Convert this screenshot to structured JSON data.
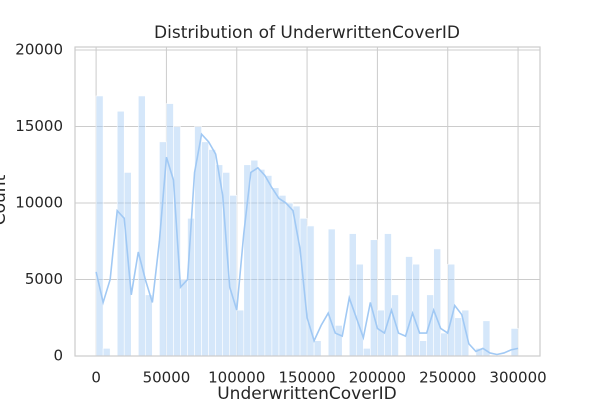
{
  "chart_data": {
    "type": "histogram",
    "title": "Distribution of UnderwrittenCoverID",
    "x_label": "UnderwrittenCoverID",
    "y_label": "Count",
    "bins": [
      0,
      5000,
      10000,
      15000,
      20000,
      25000,
      30000,
      35000,
      40000,
      45000,
      50000,
      55000,
      60000,
      65000,
      70000,
      75000,
      80000,
      85000,
      90000,
      95000,
      100000,
      105000,
      110000,
      115000,
      120000,
      125000,
      130000,
      135000,
      140000,
      145000,
      150000,
      155000,
      160000,
      165000,
      170000,
      175000,
      180000,
      185000,
      190000,
      195000,
      200000,
      205000,
      210000,
      215000,
      220000,
      225000,
      230000,
      235000,
      240000,
      245000,
      250000,
      255000,
      260000,
      265000,
      270000,
      275000,
      280000,
      285000,
      290000,
      295000,
      300000
    ],
    "values": [
      17000,
      500,
      0,
      16000,
      12000,
      0,
      17000,
      4000,
      0,
      14000,
      16500,
      15000,
      5000,
      9000,
      15000,
      14000,
      13500,
      12500,
      12000,
      10500,
      3000,
      12500,
      12800,
      12200,
      11800,
      11000,
      10500,
      10000,
      9800,
      9000,
      8500,
      1000,
      0,
      8300,
      2000,
      0,
      8000,
      6000,
      500,
      7600,
      3000,
      8000,
      4000,
      0,
      6500,
      6000,
      1000,
      4000,
      7000,
      1500,
      6000,
      2500,
      3000,
      0,
      500,
      2300,
      0,
      0,
      0,
      1800
    ],
    "color": "#a1c9f4",
    "kde": {
      "x": [
        0,
        5000,
        10000,
        15000,
        20000,
        25000,
        30000,
        35000,
        40000,
        45000,
        50000,
        55000,
        60000,
        65000,
        70000,
        75000,
        80000,
        85000,
        90000,
        95000,
        100000,
        105000,
        110000,
        115000,
        120000,
        125000,
        130000,
        135000,
        140000,
        145000,
        150000,
        155000,
        160000,
        165000,
        170000,
        175000,
        180000,
        185000,
        190000,
        195000,
        200000,
        205000,
        210000,
        215000,
        220000,
        225000,
        230000,
        235000,
        240000,
        245000,
        250000,
        255000,
        260000,
        265000,
        270000,
        275000,
        280000,
        285000,
        290000,
        295000,
        300000
      ],
      "values": [
        5500,
        3500,
        5000,
        9500,
        9000,
        4000,
        6800,
        5000,
        3500,
        7500,
        13000,
        11500,
        4500,
        5000,
        12000,
        14500,
        14000,
        13200,
        10500,
        4500,
        3000,
        8000,
        12000,
        12300,
        11800,
        11000,
        10300,
        10000,
        9500,
        7000,
        2500,
        1000,
        2000,
        2800,
        1500,
        1300,
        3800,
        2500,
        1200,
        3500,
        1800,
        1500,
        3000,
        1500,
        1300,
        2800,
        1500,
        1500,
        3000,
        1800,
        1500,
        3300,
        2700,
        800,
        300,
        500,
        200,
        100,
        200,
        400,
        500
      ]
    },
    "xlim": [
      -15000,
      315600
    ],
    "ylim": [
      0,
      20200
    ],
    "xticks": [
      0,
      50000,
      100000,
      150000,
      200000,
      250000,
      300000
    ],
    "yticks": [
      0,
      5000,
      10000,
      15000,
      20000
    ],
    "grid": true
  }
}
